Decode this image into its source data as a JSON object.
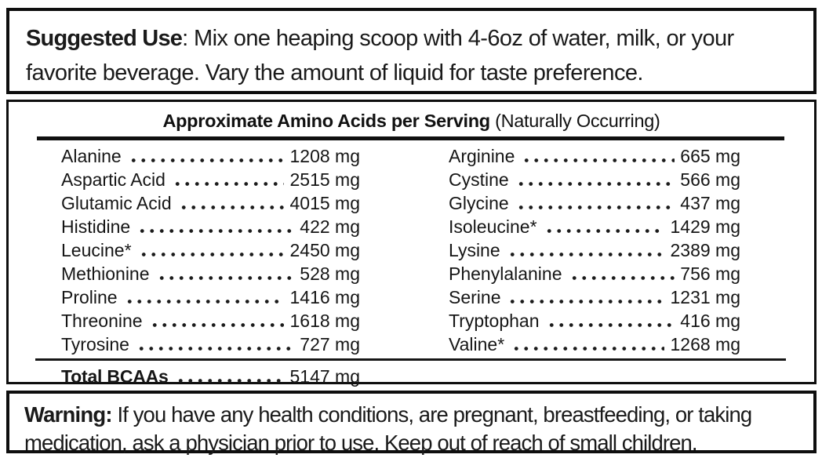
{
  "suggested_use": {
    "label": "Suggested Use",
    "colon": ": ",
    "text": "Mix one heaping scoop with 4-6oz of water, milk, or your favorite beverage. Vary the amount of liquid for taste preference."
  },
  "amino_panel": {
    "title": "Approximate Amino Acids per Serving",
    "title_note": " (Naturally Occurring)",
    "left_column": [
      {
        "name": "Alanine",
        "value": "1208 mg"
      },
      {
        "name": "Aspartic Acid",
        "value": "2515 mg"
      },
      {
        "name": "Glutamic Acid",
        "value": "4015 mg"
      },
      {
        "name": "Histidine",
        "value": "422 mg"
      },
      {
        "name": "Leucine*",
        "value": "2450 mg"
      },
      {
        "name": "Methionine",
        "value": "528 mg"
      },
      {
        "name": "Proline",
        "value": "1416 mg"
      },
      {
        "name": "Threonine",
        "value": "1618 mg"
      },
      {
        "name": "Tyrosine",
        "value": "727 mg"
      }
    ],
    "right_column": [
      {
        "name": "Arginine",
        "value": "665 mg"
      },
      {
        "name": "Cystine",
        "value": "566 mg"
      },
      {
        "name": "Glycine",
        "value": "437 mg"
      },
      {
        "name": "Isoleucine*",
        "value": "1429 mg"
      },
      {
        "name": "Lysine",
        "value": "2389 mg"
      },
      {
        "name": "Phenylalanine",
        "value": "756 mg"
      },
      {
        "name": "Serine",
        "value": "1231 mg"
      },
      {
        "name": "Tryptophan",
        "value": "416 mg"
      },
      {
        "name": "Valine*",
        "value": "1268 mg"
      }
    ],
    "total": {
      "name": "Total BCAAs",
      "value": "5147 mg"
    }
  },
  "warning": {
    "label": "Warning:",
    "text": " If you have any health conditions, are pregnant, breastfeeding, or taking medication, ask a physician prior to use. Keep out of reach of small children."
  }
}
